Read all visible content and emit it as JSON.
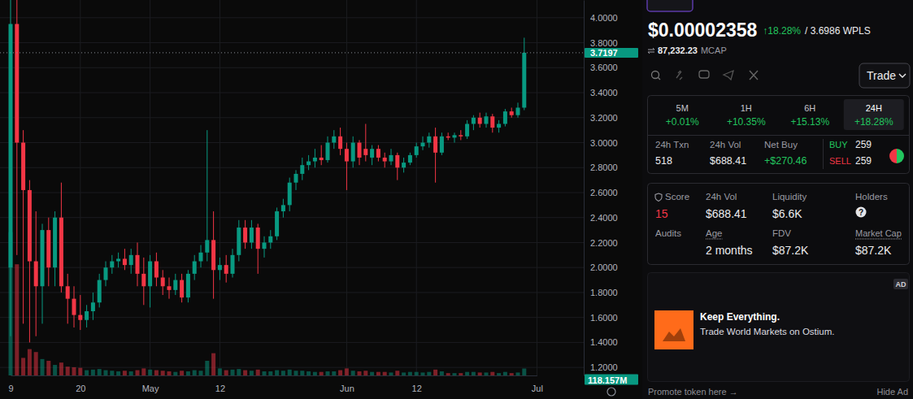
{
  "chart_data": {
    "type": "candlestick",
    "categories": [
      "9",
      null,
      null,
      null,
      null,
      null,
      null,
      null,
      null,
      null,
      null,
      "20",
      null,
      null,
      null,
      null,
      null,
      null,
      null,
      null,
      null,
      null,
      "May",
      null,
      null,
      null,
      null,
      null,
      null,
      null,
      null,
      null,
      null,
      "12",
      null,
      null,
      null,
      null,
      null,
      null,
      null,
      null,
      null,
      null,
      null,
      null,
      null,
      null,
      null,
      null,
      null,
      null,
      null,
      "Jun",
      null,
      null,
      null,
      null,
      null,
      null,
      null,
      null,
      null,
      null,
      "12",
      null,
      null,
      null,
      null,
      null,
      null,
      null,
      null,
      null,
      null,
      null,
      null,
      null,
      null,
      null,
      null,
      null,
      null,
      "Jul"
    ],
    "open": [
      2.0,
      3.95,
      3.0,
      2.62,
      2.05,
      1.85,
      2.3,
      2.0,
      2.4,
      1.85,
      1.75,
      1.62,
      1.58,
      1.65,
      1.72,
      1.9,
      2.0,
      2.05,
      2.07,
      2.02,
      2.1,
      1.95,
      1.85,
      2.05,
      1.92,
      1.85,
      1.82,
      1.9,
      1.76,
      1.95,
      2.05,
      2.12,
      2.22,
      1.98,
      2.02,
      1.95,
      2.1,
      2.32,
      2.2,
      2.32,
      2.15,
      2.2,
      2.25,
      2.45,
      2.5,
      2.68,
      2.75,
      2.82,
      2.85,
      2.88,
      2.86,
      3.0,
      3.05,
      2.95,
      2.85,
      3.0,
      2.95,
      2.88,
      2.95,
      2.88,
      2.85,
      2.9,
      2.8,
      2.84,
      2.9,
      2.97,
      3.0,
      3.05,
      2.92,
      3.05,
      3.04,
      3.06,
      3.05,
      3.15,
      3.2,
      3.15,
      3.21,
      3.12,
      3.15,
      3.25,
      3.22,
      3.28,
      null,
      null
    ],
    "high": [
      4.2,
      4.2,
      3.1,
      2.7,
      2.45,
      2.35,
      2.4,
      2.45,
      2.68,
      1.95,
      1.85,
      1.78,
      1.7,
      1.8,
      1.95,
      2.05,
      2.1,
      2.12,
      2.15,
      2.15,
      2.2,
      2.08,
      2.1,
      2.12,
      1.98,
      1.92,
      1.95,
      1.95,
      1.98,
      2.1,
      2.18,
      3.1,
      2.45,
      2.08,
      2.1,
      2.15,
      2.38,
      2.38,
      2.38,
      2.35,
      2.25,
      2.3,
      2.48,
      2.55,
      2.72,
      2.78,
      2.88,
      2.9,
      2.95,
      2.98,
      3.05,
      3.1,
      3.12,
      3.0,
      3.05,
      3.02,
      3.15,
      2.98,
      2.98,
      2.92,
      2.95,
      2.92,
      2.88,
      2.92,
      3.0,
      3.05,
      3.08,
      3.12,
      3.08,
      3.08,
      3.08,
      3.1,
      3.18,
      3.22,
      3.24,
      3.24,
      3.23,
      3.18,
      3.27,
      3.28,
      3.32,
      3.84,
      null,
      null
    ],
    "low": [
      1.45,
      2.1,
      1.55,
      1.4,
      1.45,
      1.55,
      1.85,
      1.85,
      1.8,
      1.55,
      1.52,
      1.5,
      1.52,
      1.58,
      1.68,
      1.85,
      1.95,
      2.0,
      1.98,
      1.95,
      1.85,
      1.7,
      1.68,
      1.85,
      1.78,
      1.75,
      1.78,
      1.72,
      1.72,
      1.9,
      2.0,
      2.05,
      1.75,
      1.9,
      1.88,
      1.92,
      2.05,
      2.15,
      2.15,
      1.95,
      2.08,
      2.15,
      2.22,
      2.4,
      2.45,
      2.62,
      2.7,
      2.78,
      2.8,
      2.82,
      2.84,
      2.95,
      2.9,
      2.62,
      2.8,
      2.82,
      2.85,
      2.82,
      2.85,
      2.8,
      2.82,
      2.7,
      2.76,
      2.82,
      2.88,
      2.94,
      2.96,
      2.68,
      2.9,
      3.02,
      3.0,
      3.02,
      3.03,
      3.1,
      3.12,
      3.12,
      3.08,
      3.08,
      3.13,
      3.2,
      3.2,
      3.26,
      null,
      null
    ],
    "close": [
      3.95,
      3.0,
      2.62,
      2.05,
      1.85,
      2.3,
      2.0,
      2.4,
      1.85,
      1.75,
      1.62,
      1.58,
      1.65,
      1.72,
      1.9,
      2.0,
      2.05,
      2.07,
      2.02,
      2.1,
      1.95,
      1.85,
      2.05,
      1.92,
      1.85,
      1.82,
      1.9,
      1.76,
      1.95,
      2.05,
      2.12,
      2.22,
      1.98,
      2.02,
      1.95,
      2.1,
      2.32,
      2.2,
      2.32,
      2.15,
      2.2,
      2.25,
      2.45,
      2.5,
      2.68,
      2.75,
      2.82,
      2.85,
      2.88,
      2.86,
      3.0,
      3.05,
      2.95,
      2.85,
      3.0,
      2.88,
      2.9,
      2.95,
      2.88,
      2.85,
      2.9,
      2.8,
      2.84,
      2.9,
      2.97,
      3.0,
      3.05,
      2.92,
      3.05,
      3.04,
      3.06,
      3.05,
      3.15,
      3.2,
      3.15,
      3.21,
      3.12,
      3.15,
      3.25,
      3.22,
      3.28,
      3.7197,
      null,
      null
    ],
    "volume": [
      2450,
      1900,
      300,
      450,
      400,
      280,
      250,
      180,
      220,
      150,
      140,
      130,
      90,
      100,
      110,
      90,
      80,
      70,
      80,
      70,
      90,
      120,
      100,
      90,
      80,
      70,
      60,
      80,
      70,
      90,
      80,
      250,
      380,
      120,
      90,
      100,
      110,
      90,
      80,
      100,
      70,
      70,
      90,
      80,
      100,
      80,
      80,
      70,
      60,
      60,
      70,
      70,
      90,
      120,
      80,
      70,
      80,
      60,
      60,
      60,
      50,
      80,
      50,
      60,
      60,
      50,
      60,
      100,
      70,
      40,
      40,
      40,
      60,
      60,
      50,
      50,
      60,
      40,
      60,
      40,
      50,
      118.157,
      null,
      null
    ],
    "ylim": [
      1.136,
      4.142
    ],
    "yticks": [
      {
        "value": 1.2,
        "label": "1.2000"
      },
      {
        "value": 1.4,
        "label": "1.4000"
      },
      {
        "value": 1.6,
        "label": "1.6000"
      },
      {
        "value": 1.8,
        "label": "1.8000"
      },
      {
        "value": 2.0,
        "label": "2.0000"
      },
      {
        "value": 2.2,
        "label": "2.2000"
      },
      {
        "value": 2.4,
        "label": "2.4000"
      },
      {
        "value": 2.6,
        "label": "2.6000"
      },
      {
        "value": 2.8,
        "label": "2.8000"
      },
      {
        "value": 3.0,
        "label": "3.0000"
      },
      {
        "value": 3.2,
        "label": "3.2000"
      },
      {
        "value": 3.4,
        "label": "3.4000"
      },
      {
        "value": 3.6,
        "label": "3.6000"
      },
      {
        "value": 3.8,
        "label": "3.8000"
      },
      {
        "value": 4.0,
        "label": "4.0000"
      }
    ],
    "y2lim": [
      0,
      2500
    ],
    "grid": true,
    "annotations": [
      {
        "value": 3.7197,
        "label": "3.7197"
      },
      {
        "value": 118.157,
        "label": "118.157M",
        "axis": "y2"
      }
    ]
  },
  "header": {
    "price": "$0.00002358",
    "change": "↑18.28%",
    "pair_price": "/ 3.6986 WPLS",
    "mcap": "87,232.23",
    "mcap_label": "MCAP"
  },
  "trade_button": "Trade",
  "timeframes": [
    {
      "label": "5M",
      "change": "+0.01%"
    },
    {
      "label": "1H",
      "change": "+10.35%"
    },
    {
      "label": "6H",
      "change": "+15.13%"
    },
    {
      "label": "24H",
      "change": "+18.28%"
    }
  ],
  "activity": {
    "txn_label": "24h Txn",
    "txn": "518",
    "vol_label": "24h Vol",
    "vol": "$688.41",
    "net_buy_label": "Net Buy",
    "net_buy": "+$270.46",
    "buy_label": "BUY",
    "buy": 259,
    "sell_label": "SELL",
    "sell": 259
  },
  "info": {
    "score_label": "Score",
    "score": "15",
    "vol_label": "24h Vol",
    "vol": "$688.41",
    "liquidity_label": "Liquidity",
    "liquidity": "$6.6K",
    "holders_label": "Holders",
    "holders": "?",
    "audits_label": "Audits",
    "age_label": "Age",
    "age": "2 months",
    "fdv_label": "FDV",
    "fdv": "$87.2K",
    "market_cap_label": "Market Cap",
    "market_cap": "$87.2K"
  },
  "ad": {
    "badge": "AD",
    "title": "Keep Everything.",
    "text": "Trade World Markets on Ostium."
  },
  "footer": {
    "promote": "Promote token here →",
    "hide": "Hide Ad"
  }
}
